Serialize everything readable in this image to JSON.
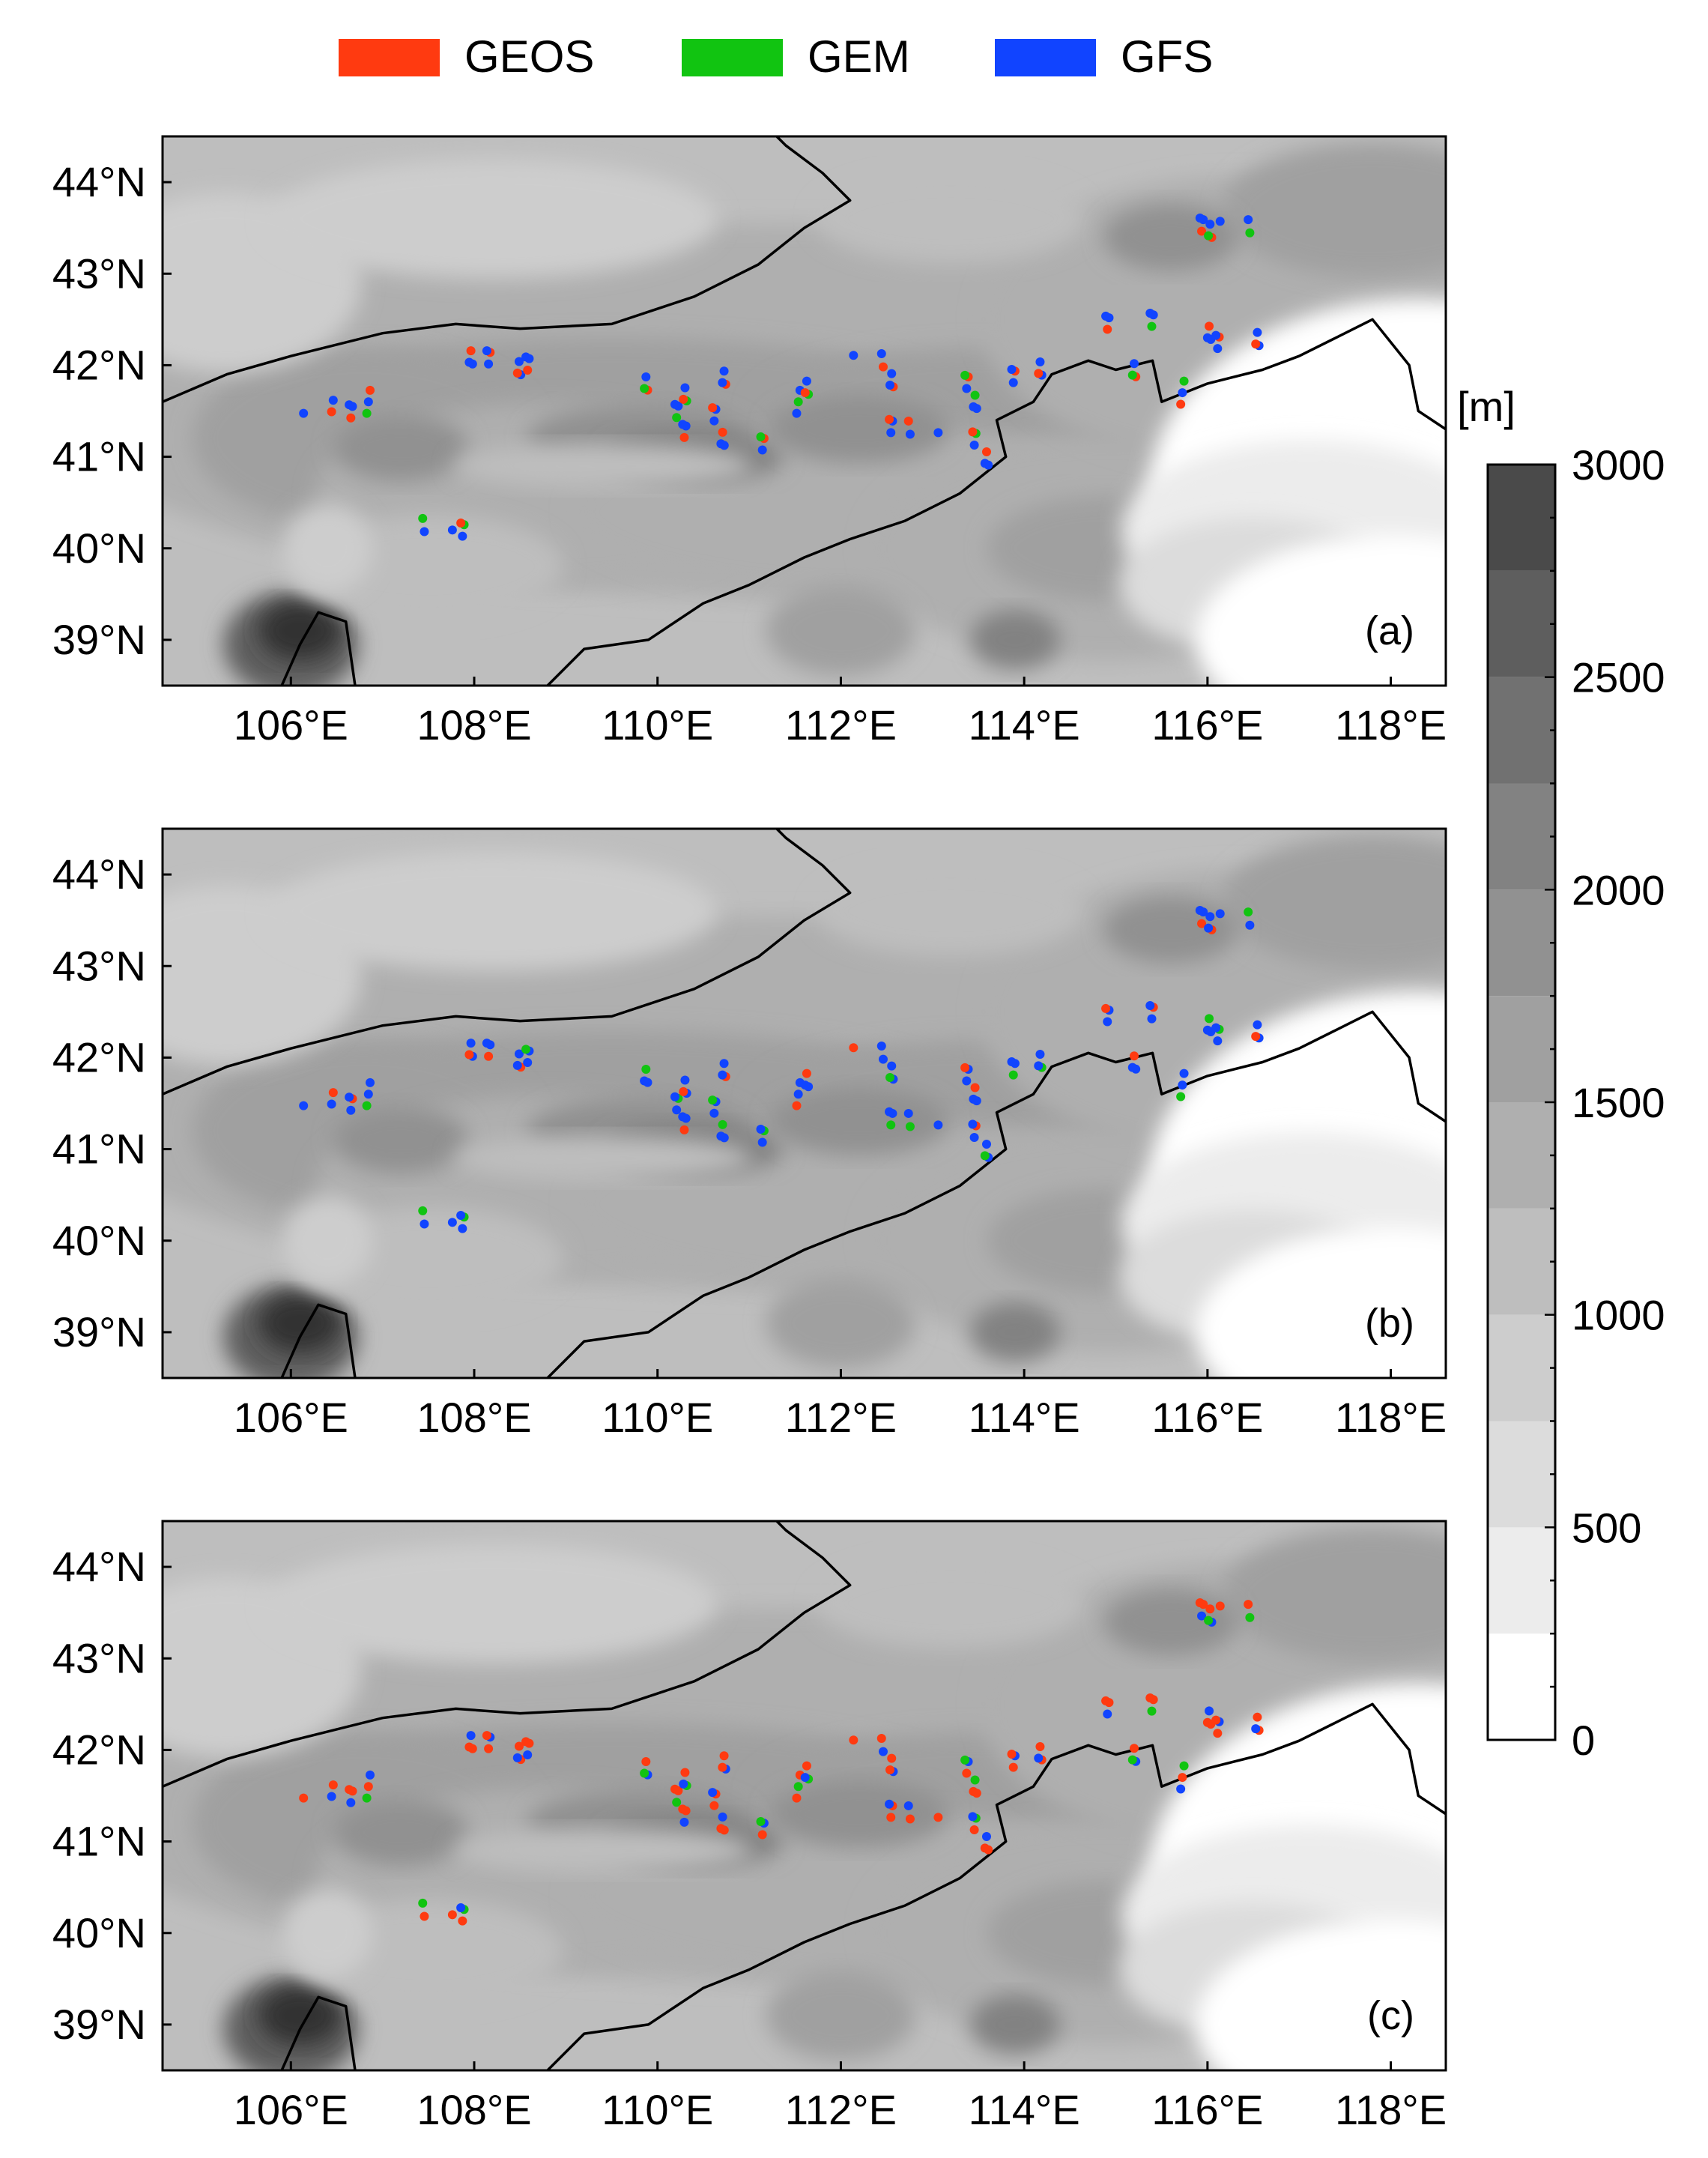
{
  "legend": {
    "items": [
      {
        "label": "GEOS",
        "color": "#ff3a10"
      },
      {
        "label": "GEM",
        "color": "#11c411"
      },
      {
        "label": "GFS",
        "color": "#1144ff"
      }
    ]
  },
  "axes": {
    "lat_ticks": [
      "44°N",
      "43°N",
      "42°N",
      "41°N",
      "40°N",
      "39°N"
    ],
    "lat_values": [
      44,
      43,
      42,
      41,
      40,
      39
    ],
    "lon_ticks": [
      "106°E",
      "108°E",
      "110°E",
      "112°E",
      "114°E",
      "116°E",
      "118°E"
    ],
    "lon_values": [
      106,
      108,
      110,
      112,
      114,
      116,
      118
    ],
    "lon_range": [
      104.6,
      118.6
    ],
    "lat_range": [
      38.5,
      44.5
    ]
  },
  "panels": [
    {
      "label": "(a)"
    },
    {
      "label": "(b)"
    },
    {
      "label": "(c)"
    }
  ],
  "colorbar": {
    "unit": "[m]",
    "tick_labels": [
      "3000",
      "2500",
      "2000",
      "1500",
      "1000",
      "500",
      "0"
    ],
    "tick_values": [
      3000,
      2500,
      2000,
      1500,
      1000,
      500,
      0
    ],
    "levels": [
      0,
      250,
      500,
      750,
      1000,
      1250,
      1500,
      1750,
      2000,
      2250,
      2500,
      2750,
      3000
    ],
    "colors": [
      "#ffffff",
      "#ececec",
      "#dcdcdc",
      "#cdcdcd",
      "#bebebe",
      "#afafaf",
      "#a0a0a0",
      "#919191",
      "#828282",
      "#717171",
      "#5e5e5e",
      "#4a4a4a",
      "#333333"
    ]
  }
}
